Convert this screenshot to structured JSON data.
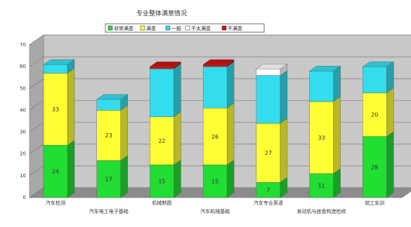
{
  "chart_data": {
    "type": "bar",
    "stacked": true,
    "style": "3d",
    "title": "专业整体满意情况",
    "categories": [
      "汽车检测",
      "汽车电工电子基础",
      "机械制图",
      "汽车机械基础",
      "汽车专业英语",
      "发动机与底盘构造检修",
      "钳工实训"
    ],
    "series": [
      {
        "name": "非常满意",
        "color": "#22dd33",
        "values": [
          24,
          17,
          15,
          15,
          7,
          11,
          28
        ],
        "labels": [
          "24",
          "17",
          "15",
          "15",
          "7",
          "11",
          "28"
        ]
      },
      {
        "name": "满意",
        "color": "#ffff33",
        "values": [
          33,
          23,
          22,
          26,
          27,
          33,
          20
        ],
        "labels": [
          "33",
          "23",
          "22",
          "26",
          "27",
          "33",
          "20"
        ]
      },
      {
        "name": "一般",
        "color": "#33ddee",
        "values": [
          4,
          5,
          22,
          19,
          22,
          14,
          12
        ],
        "labels": [
          "",
          "",
          "",
          "",
          "",
          "",
          ""
        ]
      },
      {
        "name": "不太满意",
        "color": "#ffffff",
        "values": [
          0,
          0,
          0,
          0,
          3,
          0,
          0
        ],
        "labels": [
          "",
          "",
          "",
          "",
          "",
          "",
          ""
        ]
      },
      {
        "name": "不满意",
        "color": "#cc1111",
        "values": [
          0,
          0,
          1,
          1,
          0,
          0,
          0
        ],
        "labels": [
          "",
          "",
          "",
          "",
          "",
          "",
          ""
        ]
      }
    ],
    "ylim": [
      0,
      70
    ],
    "yticks": [
      "0",
      "10",
      "20",
      "30",
      "40",
      "50",
      "60",
      "70"
    ],
    "grid": true,
    "legend": "top"
  }
}
